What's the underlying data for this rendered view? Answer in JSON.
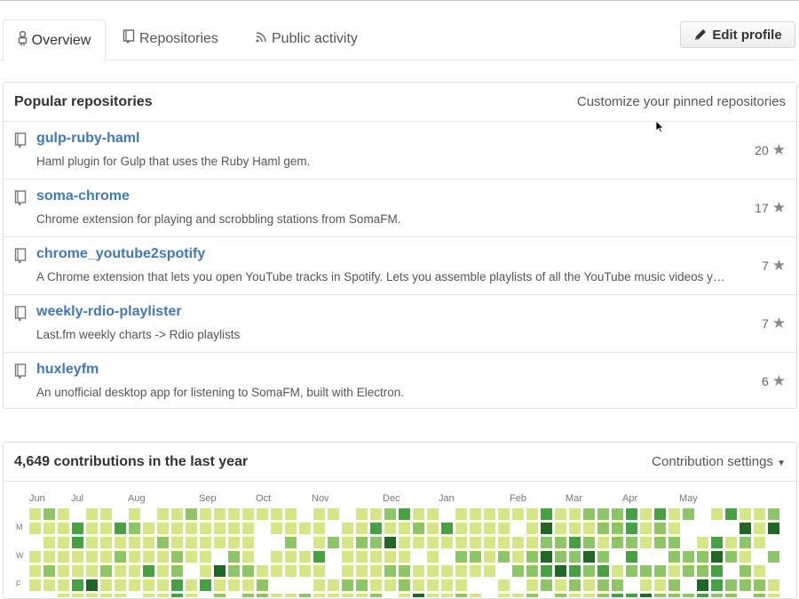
{
  "tabs": [
    {
      "label": "Overview",
      "icon": "person-icon",
      "active": true
    },
    {
      "label": "Repositories",
      "icon": "repo-book-icon",
      "active": false
    },
    {
      "label": "Public activity",
      "icon": "rss-icon",
      "active": false
    }
  ],
  "edit_profile_label": "Edit profile",
  "popular": {
    "title": "Popular repositories",
    "customize_link": "Customize your pinned repositories",
    "repos": [
      {
        "name": "gulp-ruby-haml",
        "description": "Haml plugin for Gulp that uses the Ruby Haml gem.",
        "stars": "20"
      },
      {
        "name": "soma-chrome",
        "description": "Chrome extension for playing and scrobbling stations from SomaFM.",
        "stars": "17"
      },
      {
        "name": "chrome_youtube2spotify",
        "description": "A Chrome extension that lets you open YouTube tracks in Spotify. Lets you assemble playlists of all the YouTube music videos you watch.",
        "stars": "7"
      },
      {
        "name": "weekly-rdio-playlister",
        "description": "Last.fm weekly charts -> Rdio playlists",
        "stars": "7"
      },
      {
        "name": "huxleyfm",
        "description": "An unofficial desktop app for listening to SomaFM, built with Electron.",
        "stars": "6"
      }
    ]
  },
  "contributions": {
    "title": "4,649 contributions in the last year",
    "settings_label": "Contribution settings",
    "months": [
      "Jun",
      "Jul",
      "Aug",
      "Sep",
      "Oct",
      "Nov",
      "Dec",
      "Jan",
      "Feb",
      "Mar",
      "Apr",
      "May"
    ],
    "day_labels": [
      "M",
      "W",
      "F"
    ],
    "colors": [
      "#ffffff",
      "#d6e685",
      "#8cc665",
      "#44a340",
      "#1e6823"
    ]
  }
}
